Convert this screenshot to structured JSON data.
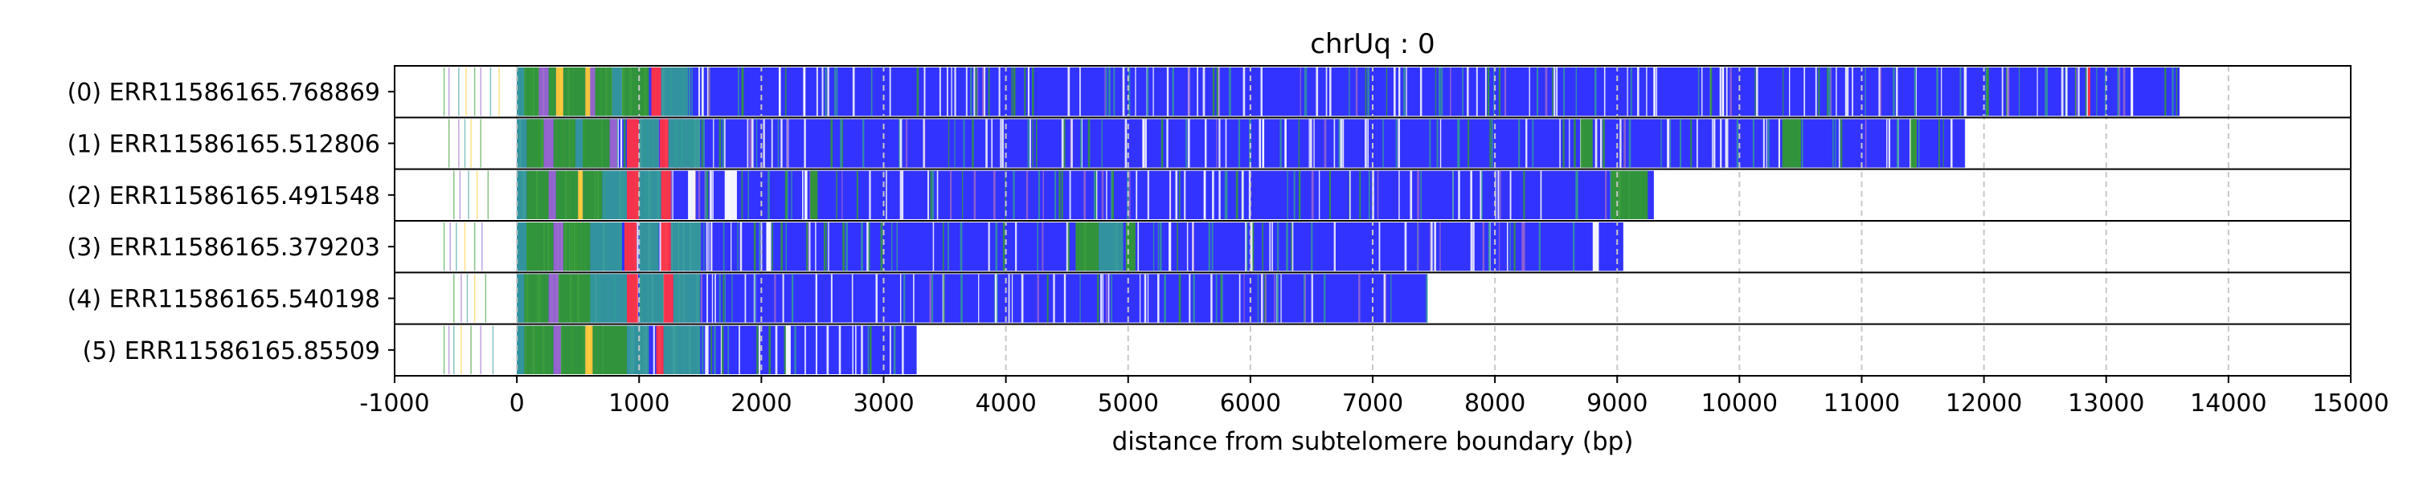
{
  "chart_data": {
    "type": "bar",
    "title": "chrUq : 0",
    "xlabel": "distance from subtelomere boundary (bp)",
    "ylabel": "",
    "xlim": [
      -1000,
      15000
    ],
    "x_ticks": [
      "-1000",
      "0",
      "1000",
      "2000",
      "3000",
      "4000",
      "5000",
      "6000",
      "7000",
      "8000",
      "9000",
      "10000",
      "11000",
      "12000",
      "13000",
      "14000",
      "15000"
    ],
    "grid": "vertical dashed",
    "colors": {
      "blue": "#3333ff",
      "green": "#339933",
      "red": "#ff3344",
      "yellow": "#ffcc33",
      "purple": "#9966cc",
      "teal": "#339999",
      "white_gap": "#ffffff",
      "grid": "#c8c8c8"
    },
    "reads": [
      {
        "label": "(0) ERR11586165.768869",
        "end": 13600,
        "prefix_marks": [
          -600,
          -560,
          -480,
          -420,
          -350,
          -300,
          -220,
          -150
        ]
      },
      {
        "label": "(1) ERR11586165.512806",
        "end": 11850,
        "prefix_marks": [
          -560,
          -480,
          -430,
          -380,
          -300
        ]
      },
      {
        "label": "(2) ERR11586165.491548",
        "end": 9300,
        "prefix_marks": [
          -520,
          -470,
          -400,
          -330,
          -240
        ]
      },
      {
        "label": "(3) ERR11586165.379203",
        "end": 9050,
        "prefix_marks": [
          -600,
          -550,
          -500,
          -430,
          -350,
          -290
        ]
      },
      {
        "label": "(4) ERR11586165.540198",
        "end": 7450,
        "prefix_marks": [
          -520,
          -460,
          -410,
          -350,
          -260
        ]
      },
      {
        "label": "(5) ERR11586165.85509",
        "end": 3270,
        "prefix_marks": [
          -600,
          -560,
          -520,
          -460,
          -380,
          -300,
          -200
        ]
      }
    ],
    "features": [
      {
        "read": 0,
        "segments": [
          [
            0,
            60,
            "teal"
          ],
          [
            60,
            180,
            "green"
          ],
          [
            180,
            260,
            "purple"
          ],
          [
            260,
            320,
            "green"
          ],
          [
            320,
            380,
            "yellow"
          ],
          [
            380,
            560,
            "green"
          ],
          [
            560,
            600,
            "yellow"
          ],
          [
            600,
            640,
            "purple"
          ],
          [
            640,
            780,
            "green"
          ],
          [
            780,
            860,
            "teal"
          ],
          [
            860,
            1080,
            "green"
          ],
          [
            1100,
            1180,
            "red"
          ],
          [
            1180,
            1400,
            "teal"
          ],
          [
            12020,
            12040,
            "green"
          ],
          [
            12850,
            12870,
            "red"
          ],
          [
            13200,
            13220,
            "white_gap"
          ]
        ]
      },
      {
        "read": 1,
        "segments": [
          [
            0,
            80,
            "teal"
          ],
          [
            80,
            220,
            "green"
          ],
          [
            220,
            300,
            "purple"
          ],
          [
            300,
            480,
            "green"
          ],
          [
            480,
            540,
            "teal"
          ],
          [
            540,
            760,
            "green"
          ],
          [
            760,
            820,
            "purple"
          ],
          [
            900,
            1000,
            "red"
          ],
          [
            1000,
            1160,
            "teal"
          ],
          [
            1170,
            1240,
            "red"
          ],
          [
            1240,
            1500,
            "teal"
          ],
          [
            8700,
            8800,
            "green"
          ],
          [
            10350,
            10500,
            "green"
          ],
          [
            11400,
            11450,
            "green"
          ]
        ]
      },
      {
        "read": 2,
        "segments": [
          [
            0,
            80,
            "teal"
          ],
          [
            80,
            260,
            "green"
          ],
          [
            260,
            320,
            "purple"
          ],
          [
            320,
            500,
            "green"
          ],
          [
            500,
            540,
            "yellow"
          ],
          [
            540,
            700,
            "green"
          ],
          [
            700,
            900,
            "teal"
          ],
          [
            900,
            1000,
            "red"
          ],
          [
            1000,
            1180,
            "teal"
          ],
          [
            1180,
            1260,
            "red"
          ],
          [
            1400,
            1460,
            "white_gap"
          ],
          [
            1700,
            1800,
            "white_gap"
          ],
          [
            2400,
            2460,
            "green"
          ],
          [
            8950,
            9250,
            "green"
          ]
        ]
      },
      {
        "read": 3,
        "segments": [
          [
            0,
            80,
            "teal"
          ],
          [
            80,
            300,
            "green"
          ],
          [
            300,
            380,
            "purple"
          ],
          [
            380,
            600,
            "green"
          ],
          [
            600,
            860,
            "teal"
          ],
          [
            880,
            980,
            "red"
          ],
          [
            1000,
            1160,
            "teal"
          ],
          [
            1180,
            1260,
            "red"
          ],
          [
            1260,
            1500,
            "teal"
          ],
          [
            2040,
            2080,
            "white_gap"
          ],
          [
            4570,
            4760,
            "green"
          ],
          [
            4760,
            4960,
            "teal"
          ],
          [
            4980,
            5060,
            "green"
          ],
          [
            8800,
            8850,
            "white_gap"
          ]
        ]
      },
      {
        "read": 4,
        "segments": [
          [
            0,
            60,
            "teal"
          ],
          [
            60,
            260,
            "green"
          ],
          [
            260,
            340,
            "purple"
          ],
          [
            340,
            600,
            "green"
          ],
          [
            600,
            900,
            "teal"
          ],
          [
            900,
            990,
            "red"
          ],
          [
            1000,
            1200,
            "teal"
          ],
          [
            1200,
            1280,
            "red"
          ],
          [
            1280,
            1500,
            "teal"
          ]
        ]
      },
      {
        "read": 5,
        "segments": [
          [
            0,
            60,
            "teal"
          ],
          [
            60,
            300,
            "green"
          ],
          [
            300,
            360,
            "purple"
          ],
          [
            360,
            560,
            "green"
          ],
          [
            560,
            620,
            "yellow"
          ],
          [
            620,
            900,
            "green"
          ],
          [
            900,
            1080,
            "teal"
          ],
          [
            1140,
            1200,
            "red"
          ],
          [
            1200,
            1500,
            "teal"
          ],
          [
            2200,
            2240,
            "white_gap"
          ]
        ]
      }
    ]
  }
}
